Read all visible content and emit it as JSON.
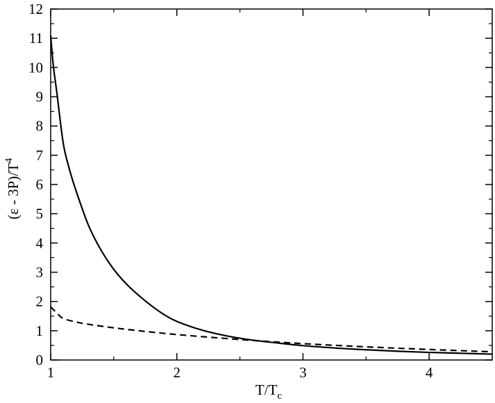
{
  "chart_data": {
    "type": "line",
    "xlabel": "T/T",
    "xlabel_sub": "c",
    "ylabel": "(ε - 3P)/T",
    "ylabel_sup": "4",
    "xlim": [
      1,
      4.5
    ],
    "ylim": [
      0,
      12
    ],
    "x_ticks": [
      1,
      2,
      3,
      4
    ],
    "y_ticks": [
      0,
      1,
      2,
      3,
      4,
      5,
      6,
      7,
      8,
      9,
      10,
      11,
      12
    ],
    "grid": false,
    "series": [
      {
        "style": "solid",
        "x": [
          1.0,
          1.02,
          1.05,
          1.1,
          1.15,
          1.2,
          1.3,
          1.4,
          1.5,
          1.6,
          1.7,
          1.8,
          1.9,
          2.0,
          2.2,
          2.4,
          2.6,
          2.8,
          3.0,
          3.25,
          3.5,
          3.75,
          4.0,
          4.25,
          4.5
        ],
        "y": [
          11.1,
          10.1,
          9.1,
          7.4,
          6.5,
          5.8,
          4.6,
          3.75,
          3.1,
          2.6,
          2.2,
          1.85,
          1.55,
          1.32,
          1.02,
          0.82,
          0.68,
          0.58,
          0.49,
          0.41,
          0.35,
          0.3,
          0.26,
          0.23,
          0.2
        ]
      },
      {
        "style": "dashed",
        "x": [
          1.0,
          1.05,
          1.1,
          1.2,
          1.3,
          1.5,
          1.7,
          2.0,
          2.5,
          3.0,
          3.5,
          4.0,
          4.5
        ],
        "y": [
          1.82,
          1.6,
          1.42,
          1.3,
          1.22,
          1.1,
          1.0,
          0.87,
          0.7,
          0.56,
          0.45,
          0.36,
          0.28
        ]
      }
    ]
  }
}
